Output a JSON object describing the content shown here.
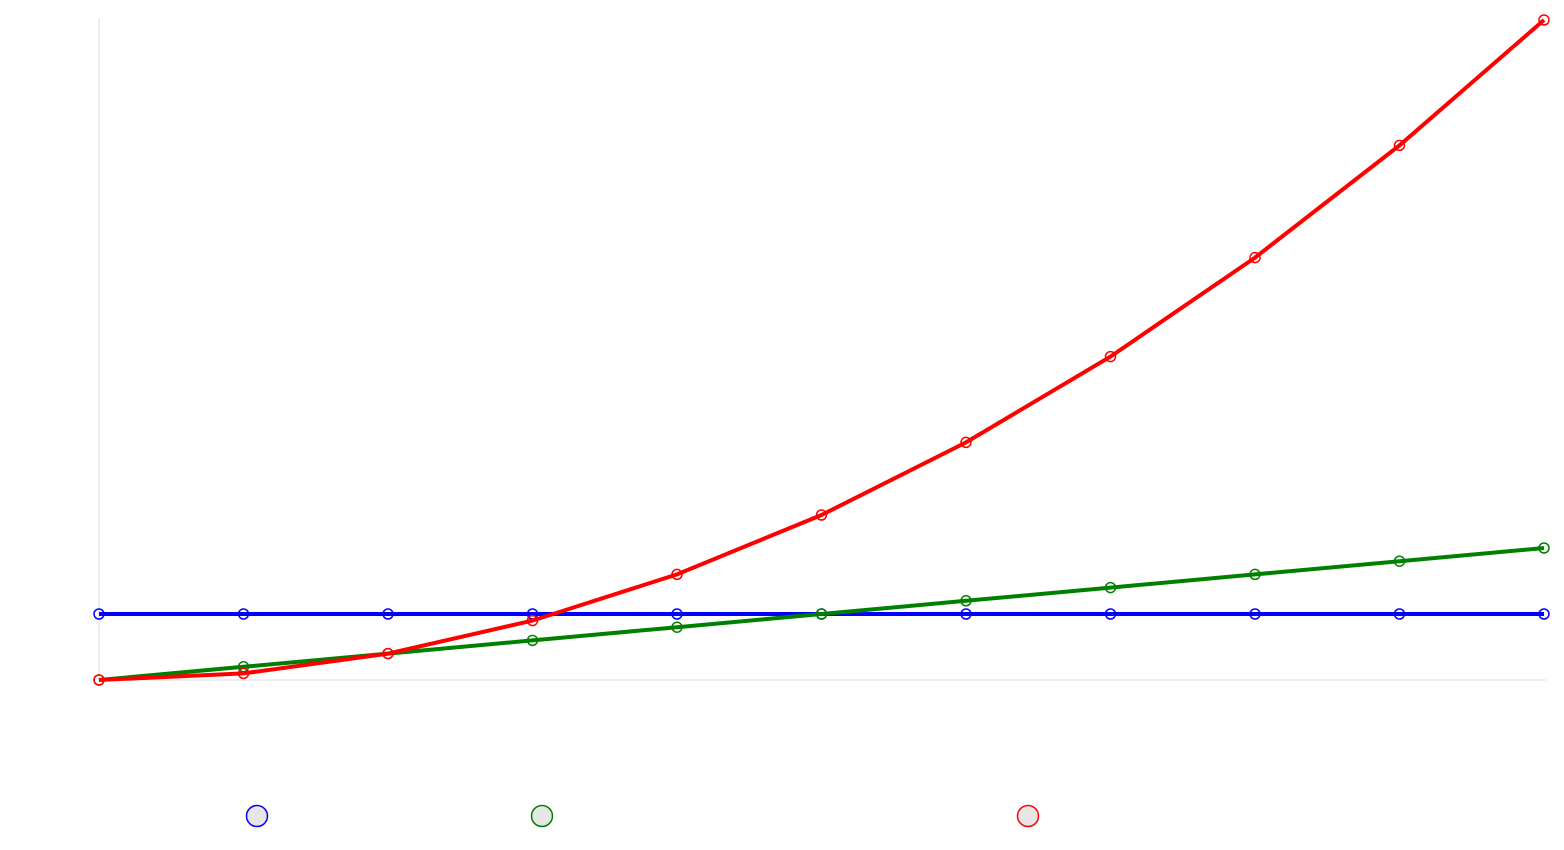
{
  "chart_data": {
    "type": "line",
    "title": "",
    "xlabel": "",
    "ylabel": "",
    "x": [
      0,
      1,
      2,
      3,
      4,
      5,
      6,
      7,
      8,
      9,
      10
    ],
    "xlim": [
      0,
      10
    ],
    "ylim": [
      0,
      10
    ],
    "grid": false,
    "legend_placement": "bottom",
    "series": [
      {
        "name": "",
        "color": "#0000ff",
        "values": [
          1,
          1,
          1,
          1,
          1,
          1,
          1,
          1,
          1,
          1,
          1
        ]
      },
      {
        "name": "",
        "color": "#008000",
        "values": [
          0,
          0.2,
          0.4,
          0.6,
          0.8,
          1.0,
          1.2,
          1.4,
          1.6,
          1.8,
          2.0
        ]
      },
      {
        "name": "",
        "color": "#ff0000",
        "values": [
          0,
          0.1,
          0.4,
          0.9,
          1.6,
          2.5,
          3.6,
          4.9,
          6.4,
          8.1,
          10.0
        ]
      }
    ]
  }
}
